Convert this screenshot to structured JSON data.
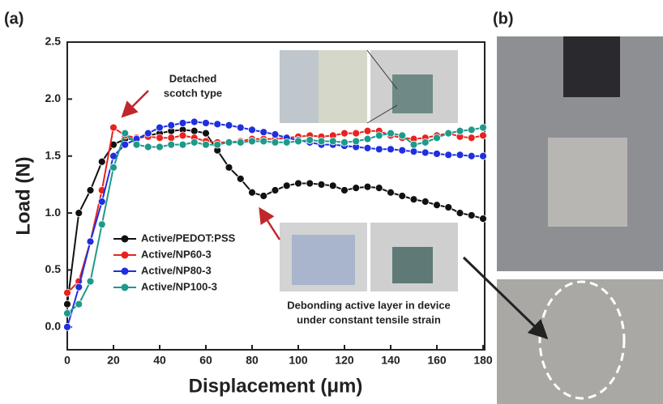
{
  "chart_data": {
    "type": "line",
    "panel_label": "(a)",
    "photo_panel_label": "(b)",
    "xlabel": "Displacement (μm)",
    "ylabel": "Load (N)",
    "x": [
      0,
      5,
      10,
      15,
      20,
      25,
      30,
      35,
      40,
      45,
      50,
      55,
      60,
      65,
      70,
      75,
      80,
      85,
      90,
      95,
      100,
      105,
      110,
      115,
      120,
      125,
      130,
      135,
      140,
      145,
      150,
      155,
      160,
      165,
      170,
      175,
      180
    ],
    "series": [
      {
        "name": "Active/PEDOT:PSS",
        "color": "#111111",
        "values": [
          0.2,
          1.0,
          1.2,
          1.45,
          1.6,
          1.65,
          1.65,
          1.68,
          1.7,
          1.72,
          1.73,
          1.72,
          1.7,
          1.55,
          1.4,
          1.3,
          1.18,
          1.15,
          1.2,
          1.24,
          1.26,
          1.26,
          1.25,
          1.24,
          1.2,
          1.22,
          1.23,
          1.22,
          1.18,
          1.15,
          1.12,
          1.1,
          1.07,
          1.05,
          1.0,
          0.98,
          0.95
        ]
      },
      {
        "name": "Active/NP60-3",
        "color": "#e8231f",
        "values": [
          0.3,
          0.4,
          0.75,
          1.2,
          1.75,
          1.68,
          1.66,
          1.67,
          1.66,
          1.66,
          1.68,
          1.66,
          1.63,
          1.62,
          1.62,
          1.63,
          1.65,
          1.65,
          1.65,
          1.66,
          1.67,
          1.68,
          1.67,
          1.68,
          1.7,
          1.7,
          1.72,
          1.72,
          1.68,
          1.66,
          1.65,
          1.66,
          1.68,
          1.7,
          1.67,
          1.66,
          1.68
        ]
      },
      {
        "name": "Active/NP80-3",
        "color": "#1f2fe0",
        "values": [
          0.0,
          0.35,
          0.75,
          1.1,
          1.5,
          1.6,
          1.65,
          1.7,
          1.75,
          1.77,
          1.79,
          1.8,
          1.79,
          1.78,
          1.77,
          1.75,
          1.73,
          1.71,
          1.69,
          1.66,
          1.64,
          1.62,
          1.6,
          1.6,
          1.59,
          1.58,
          1.57,
          1.56,
          1.56,
          1.55,
          1.54,
          1.53,
          1.52,
          1.51,
          1.51,
          1.5,
          1.5
        ]
      },
      {
        "name": "Active/NP100-3",
        "color": "#1e9a8a",
        "values": [
          0.12,
          0.2,
          0.4,
          0.9,
          1.4,
          1.7,
          1.6,
          1.58,
          1.58,
          1.6,
          1.6,
          1.62,
          1.6,
          1.6,
          1.62,
          1.62,
          1.63,
          1.63,
          1.62,
          1.62,
          1.63,
          1.64,
          1.63,
          1.63,
          1.62,
          1.63,
          1.65,
          1.68,
          1.7,
          1.68,
          1.6,
          1.62,
          1.66,
          1.7,
          1.72,
          1.73,
          1.75
        ]
      }
    ],
    "xlim": [
      0,
      180
    ],
    "xticks": [
      0,
      20,
      40,
      60,
      80,
      100,
      120,
      140,
      160,
      180
    ],
    "ylim": [
      -0.2,
      2.5
    ],
    "yticks": [
      {
        "value": 0,
        "label": "0.0"
      },
      0.5,
      {
        "value": 1,
        "label": "1.0"
      },
      1.5,
      {
        "value": 2,
        "label": "2.0"
      },
      2.5
    ],
    "legend": "middle-left",
    "annotations": [
      {
        "lines": [
          "Detached",
          "scotch type"
        ]
      },
      {
        "lines": [
          "Debonding active layer in device",
          "under constant tensile strain"
        ]
      }
    ]
  }
}
